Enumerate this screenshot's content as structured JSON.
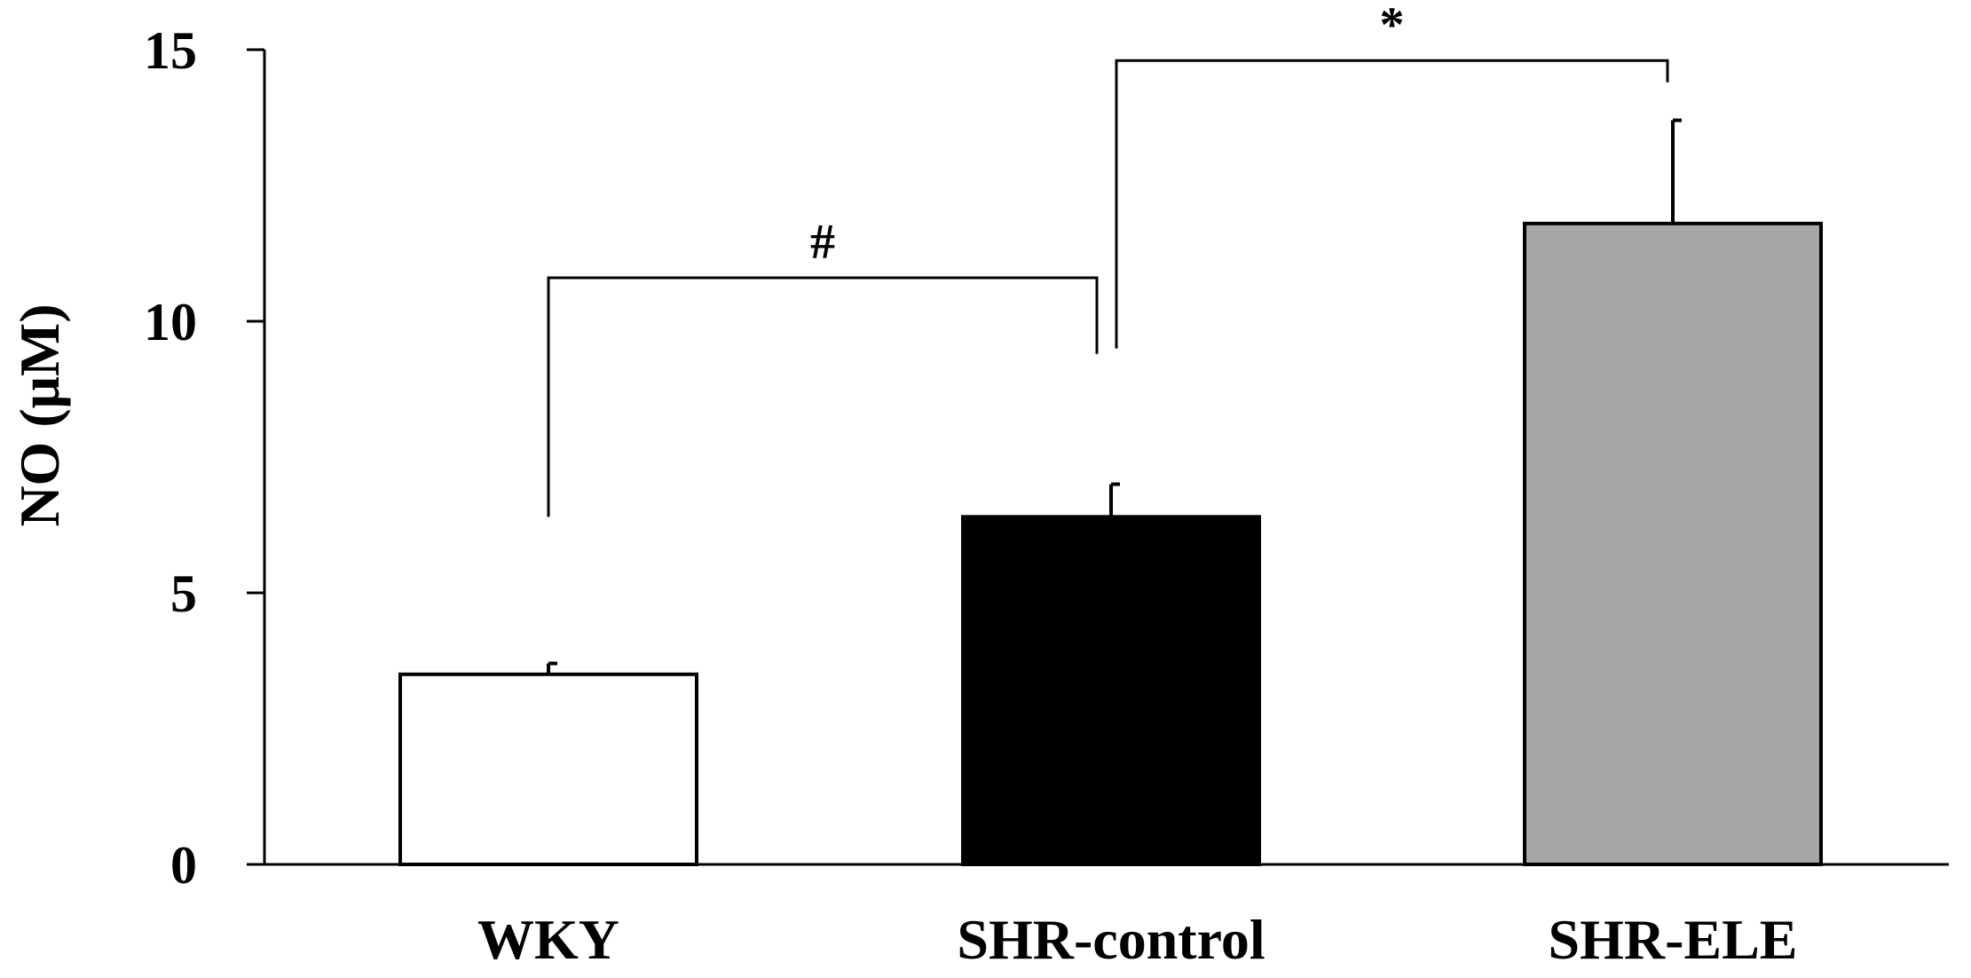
{
  "chart_data": {
    "type": "bar",
    "title": "",
    "xlabel": "",
    "ylabel": "NO (μM)",
    "ylim": [
      0,
      15
    ],
    "yticks": [
      0,
      5,
      10,
      15
    ],
    "categories": [
      "WKY",
      "SHR-control",
      "SHR-ELE"
    ],
    "values": [
      3.5,
      6.4,
      11.8
    ],
    "errors": [
      0.2,
      0.6,
      1.9
    ],
    "bar_colors": [
      "#ffffff",
      "#000000",
      "#a6a6a6"
    ],
    "grid": false,
    "legend": "none",
    "significance": [
      {
        "label": "#",
        "from": 0,
        "to": 1,
        "level": 10.8,
        "left_end": 6.4,
        "right_end": 9.4
      },
      {
        "label": "*",
        "from": 1,
        "to": 2,
        "level": 14.8,
        "left_end": 9.5,
        "right_end": 14.4
      }
    ]
  }
}
